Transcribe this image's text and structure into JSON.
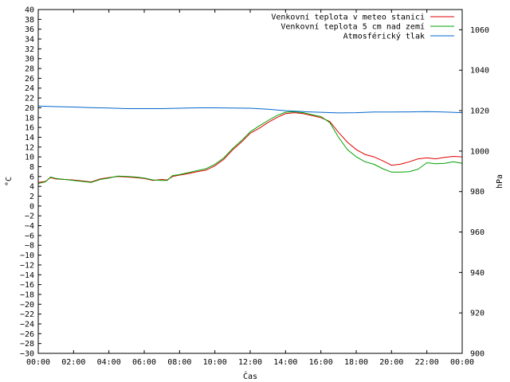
{
  "chart_data": {
    "type": "line",
    "xlabel": "Čas",
    "ylabel_left": "°C",
    "ylabel_right": "hPa",
    "x_ticks": [
      "00:00",
      "02:00",
      "04:00",
      "06:00",
      "08:00",
      "10:00",
      "12:00",
      "14:00",
      "16:00",
      "18:00",
      "20:00",
      "22:00",
      "00:00"
    ],
    "x_range": [
      0,
      24
    ],
    "y_left_range": [
      -30,
      40
    ],
    "y_left_step": 2,
    "y_right_range": [
      900,
      1070
    ],
    "y_right_ticks": [
      900,
      920,
      940,
      960,
      980,
      1000,
      1020,
      1040,
      1060
    ],
    "legend_position": "top-right",
    "series": [
      {
        "name": "Venkovní teplota v meteo stanici",
        "axis": "left",
        "color": "#e00000",
        "x": [
          0,
          0.4,
          0.7,
          1,
          1.5,
          2,
          2.5,
          3,
          3.5,
          4,
          4.5,
          5,
          5.5,
          6,
          6.5,
          7,
          7.3,
          7.6,
          8,
          8.5,
          9,
          9.5,
          10,
          10.5,
          11,
          11.5,
          12,
          12.5,
          13,
          13.5,
          14,
          14.5,
          15,
          15.5,
          16,
          16.5,
          17,
          17.5,
          18,
          18.5,
          19,
          19.5,
          20,
          20.5,
          21,
          21.5,
          22,
          22.5,
          23,
          23.5,
          24
        ],
        "values": [
          4.8,
          5.0,
          5.8,
          5.5,
          5.4,
          5.3,
          5.1,
          4.9,
          5.5,
          5.8,
          6.0,
          5.9,
          5.8,
          5.6,
          5.2,
          5.4,
          5.3,
          6.0,
          6.3,
          6.6,
          7.0,
          7.3,
          8.2,
          9.5,
          11.4,
          13.0,
          14.8,
          15.8,
          17.0,
          18.0,
          18.8,
          19.0,
          18.8,
          18.4,
          18.0,
          17.2,
          15.0,
          13.0,
          11.5,
          10.5,
          10.0,
          9.2,
          8.3,
          8.5,
          9.0,
          9.6,
          9.8,
          9.6,
          9.9,
          10.1,
          10.0
        ]
      },
      {
        "name": "Venkovní teplota 5 cm nad zemí",
        "axis": "left",
        "color": "#00a000",
        "x": [
          0,
          0.4,
          0.7,
          1,
          1.5,
          2,
          2.5,
          3,
          3.5,
          4,
          4.5,
          5,
          5.5,
          6,
          6.5,
          7,
          7.3,
          7.6,
          8,
          8.5,
          9,
          9.5,
          10,
          10.5,
          11,
          11.5,
          12,
          12.5,
          13,
          13.5,
          14,
          14.5,
          15,
          15.5,
          16,
          16.5,
          17,
          17.5,
          18,
          18.5,
          19,
          19.5,
          20,
          20.5,
          21,
          21.5,
          22,
          22.5,
          23,
          23.5,
          24
        ],
        "values": [
          4.6,
          4.9,
          5.9,
          5.6,
          5.4,
          5.2,
          5.0,
          4.8,
          5.4,
          5.7,
          6.1,
          6.0,
          5.9,
          5.7,
          5.3,
          5.2,
          5.2,
          6.2,
          6.4,
          6.8,
          7.2,
          7.6,
          8.5,
          9.8,
          11.7,
          13.3,
          15.1,
          16.3,
          17.4,
          18.4,
          19.1,
          19.2,
          19.0,
          18.6,
          18.2,
          17.0,
          14.0,
          11.5,
          10.0,
          9.0,
          8.5,
          7.6,
          6.9,
          6.9,
          7.0,
          7.5,
          8.8,
          8.6,
          8.7,
          9.0,
          8.7
        ]
      },
      {
        "name": "Atmosférický tlak",
        "axis": "right",
        "color": "#0066cc",
        "x": [
          0,
          1,
          2,
          3,
          4,
          5,
          6,
          7,
          8,
          9,
          10,
          11,
          12,
          13,
          14,
          15,
          16,
          17,
          18,
          19,
          20,
          21,
          22,
          23,
          24
        ],
        "values": [
          1022.3,
          1022.0,
          1021.8,
          1021.5,
          1021.3,
          1021.0,
          1021.0,
          1021.0,
          1021.2,
          1021.4,
          1021.4,
          1021.3,
          1021.2,
          1020.7,
          1020.0,
          1019.5,
          1019.2,
          1018.9,
          1019.0,
          1019.3,
          1019.3,
          1019.4,
          1019.5,
          1019.3,
          1019.0
        ]
      }
    ]
  }
}
